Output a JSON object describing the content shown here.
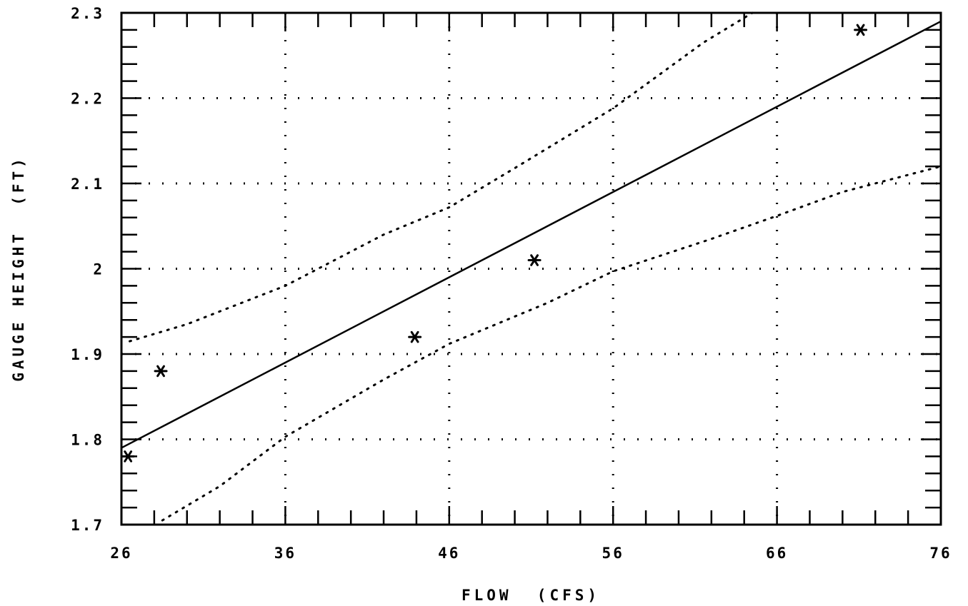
{
  "chart_data": {
    "type": "scatter",
    "xlabel": "FLOW  (CFS)",
    "ylabel": "GAUGE HEIGHT  (FT)",
    "xlim": [
      26,
      76
    ],
    "ylim": [
      1.7,
      2.3
    ],
    "x_ticks": [
      26,
      36,
      46,
      56,
      66,
      76
    ],
    "y_ticks": [
      1.7,
      1.8,
      1.9,
      2.0,
      2.1,
      2.2,
      2.3
    ],
    "x_tick_labels": [
      "26",
      "36",
      "46",
      "56",
      "66",
      "76"
    ],
    "y_tick_labels": [
      "1.7",
      "1.8",
      "1.9",
      "2",
      "2.1",
      "2.2",
      "2.3"
    ],
    "x_minor_step": 2,
    "y_minor_step": 0.02,
    "grid": true,
    "points": [
      {
        "x": 26.4,
        "y": 1.78
      },
      {
        "x": 28.4,
        "y": 1.88
      },
      {
        "x": 43.9,
        "y": 1.92
      },
      {
        "x": 51.2,
        "y": 2.01
      },
      {
        "x": 71.1,
        "y": 2.28
      }
    ],
    "fit_line": [
      [
        26,
        1.79
      ],
      [
        76,
        2.29
      ]
    ],
    "confidence_bands": [
      [
        [
          26.5,
          1.915
        ],
        [
          30,
          1.935
        ],
        [
          36,
          1.98
        ],
        [
          42,
          2.04
        ],
        [
          46,
          2.072
        ],
        [
          50,
          2.118
        ],
        [
          56,
          2.188
        ],
        [
          61.5,
          2.265
        ],
        [
          64.5,
          2.3
        ]
      ],
      [
        [
          28.5,
          1.705
        ],
        [
          32,
          1.745
        ],
        [
          36,
          1.803
        ],
        [
          42,
          1.87
        ],
        [
          46,
          1.912
        ],
        [
          52,
          1.96
        ],
        [
          56,
          1.997
        ],
        [
          62,
          2.035
        ],
        [
          66,
          2.062
        ],
        [
          70,
          2.09
        ],
        [
          76,
          2.12
        ]
      ]
    ],
    "colors": {
      "line": "#000000",
      "background": "#ffffff"
    }
  }
}
